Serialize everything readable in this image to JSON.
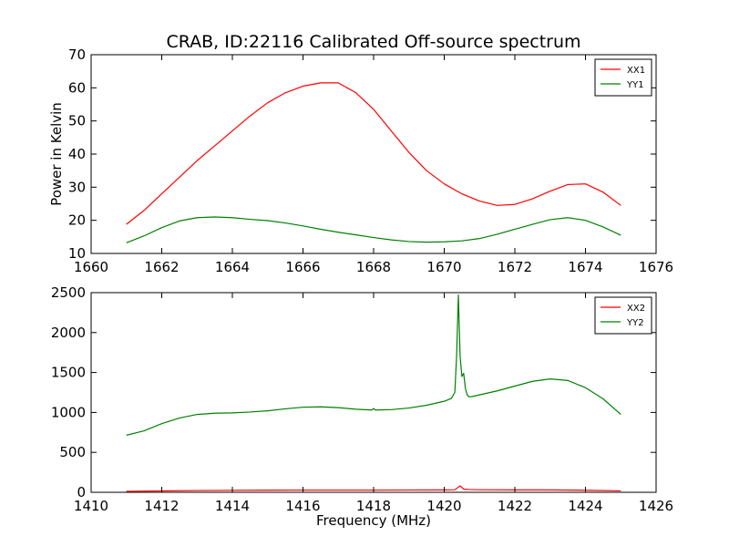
{
  "figure": {
    "title": "CRAB, ID:22116 Calibrated Off-source spectrum"
  },
  "colors": {
    "xx": "#ff0000",
    "yy": "#008000",
    "axes": "#000000",
    "background": "#ffffff"
  },
  "chart_data": [
    {
      "type": "line",
      "title": "CRAB, ID:22116 Calibrated Off-source spectrum",
      "xlabel": "",
      "ylabel": "Power in Kelvin",
      "xlim": [
        1660,
        1676
      ],
      "ylim": [
        10,
        70
      ],
      "xticks": [
        1660,
        1662,
        1664,
        1666,
        1668,
        1670,
        1672,
        1674,
        1676
      ],
      "yticks": [
        10,
        20,
        30,
        40,
        50,
        60,
        70
      ],
      "grid": false,
      "legend_position": "top-right",
      "series": [
        {
          "name": "XX1",
          "color": "#ff0000",
          "x": [
            1661.0,
            1661.5,
            1662.0,
            1662.5,
            1663.0,
            1663.5,
            1664.0,
            1664.5,
            1665.0,
            1665.5,
            1666.0,
            1666.5,
            1667.0,
            1667.5,
            1668.0,
            1668.5,
            1669.0,
            1669.5,
            1670.0,
            1670.5,
            1671.0,
            1671.5,
            1672.0,
            1672.5,
            1673.0,
            1673.5,
            1674.0,
            1674.5,
            1675.0
          ],
          "y": [
            18.8,
            23.0,
            28.0,
            33.0,
            38.0,
            42.5,
            47.0,
            51.5,
            55.5,
            58.5,
            60.5,
            61.5,
            61.5,
            58.5,
            53.5,
            47.0,
            40.5,
            35.0,
            31.0,
            28.0,
            25.8,
            24.5,
            24.8,
            26.5,
            28.8,
            30.8,
            31.0,
            28.5,
            24.5
          ]
        },
        {
          "name": "YY1",
          "color": "#008000",
          "x": [
            1661.0,
            1661.5,
            1662.0,
            1662.5,
            1663.0,
            1663.5,
            1664.0,
            1664.5,
            1665.0,
            1665.5,
            1666.0,
            1666.5,
            1667.0,
            1667.5,
            1668.0,
            1668.5,
            1669.0,
            1669.5,
            1670.0,
            1670.5,
            1671.0,
            1671.5,
            1672.0,
            1672.5,
            1673.0,
            1673.5,
            1674.0,
            1674.5,
            1675.0
          ],
          "y": [
            13.2,
            15.3,
            17.8,
            19.8,
            20.8,
            21.0,
            20.8,
            20.3,
            19.9,
            19.2,
            18.3,
            17.3,
            16.4,
            15.6,
            14.8,
            14.1,
            13.6,
            13.4,
            13.5,
            13.8,
            14.5,
            15.8,
            17.3,
            18.8,
            20.2,
            20.8,
            20.0,
            18.0,
            15.5
          ]
        }
      ]
    },
    {
      "type": "line",
      "title": "",
      "xlabel": "Frequency (MHz)",
      "ylabel": "",
      "xlim": [
        1410,
        1426
      ],
      "ylim": [
        0,
        2500
      ],
      "xticks": [
        1410,
        1412,
        1414,
        1416,
        1418,
        1420,
        1422,
        1424,
        1426
      ],
      "yticks": [
        0,
        500,
        1000,
        1500,
        2000,
        2500
      ],
      "grid": false,
      "legend_position": "top-right",
      "series": [
        {
          "name": "XX2",
          "color": "#ff0000",
          "x": [
            1411.0,
            1412.0,
            1413.0,
            1414.0,
            1415.0,
            1416.0,
            1417.0,
            1418.0,
            1419.0,
            1420.0,
            1420.3,
            1420.4,
            1420.45,
            1420.55,
            1420.7,
            1421.0,
            1422.0,
            1423.0,
            1424.0,
            1425.0
          ],
          "y": [
            12,
            17,
            22,
            25,
            27,
            28,
            28,
            28,
            29,
            30,
            32,
            65,
            80,
            40,
            35,
            32,
            30,
            30,
            26,
            18
          ]
        },
        {
          "name": "YY2",
          "color": "#008000",
          "x": [
            1411.0,
            1411.5,
            1412.0,
            1412.5,
            1413.0,
            1413.5,
            1414.0,
            1414.5,
            1415.0,
            1415.5,
            1416.0,
            1416.5,
            1417.0,
            1417.5,
            1417.95,
            1418.0,
            1418.05,
            1418.5,
            1419.0,
            1419.5,
            1420.0,
            1420.2,
            1420.3,
            1420.35,
            1420.4,
            1420.45,
            1420.5,
            1420.55,
            1420.6,
            1420.65,
            1420.7,
            1420.8,
            1421.0,
            1421.5,
            1422.0,
            1422.5,
            1423.0,
            1423.5,
            1424.0,
            1424.5,
            1425.0
          ],
          "y": [
            715,
            770,
            860,
            930,
            975,
            990,
            995,
            1005,
            1020,
            1045,
            1065,
            1070,
            1060,
            1040,
            1030,
            1050,
            1030,
            1035,
            1055,
            1090,
            1140,
            1175,
            1250,
            1700,
            2470,
            1700,
            1450,
            1490,
            1300,
            1220,
            1195,
            1200,
            1220,
            1270,
            1330,
            1390,
            1420,
            1400,
            1310,
            1170,
            975
          ]
        }
      ]
    }
  ]
}
